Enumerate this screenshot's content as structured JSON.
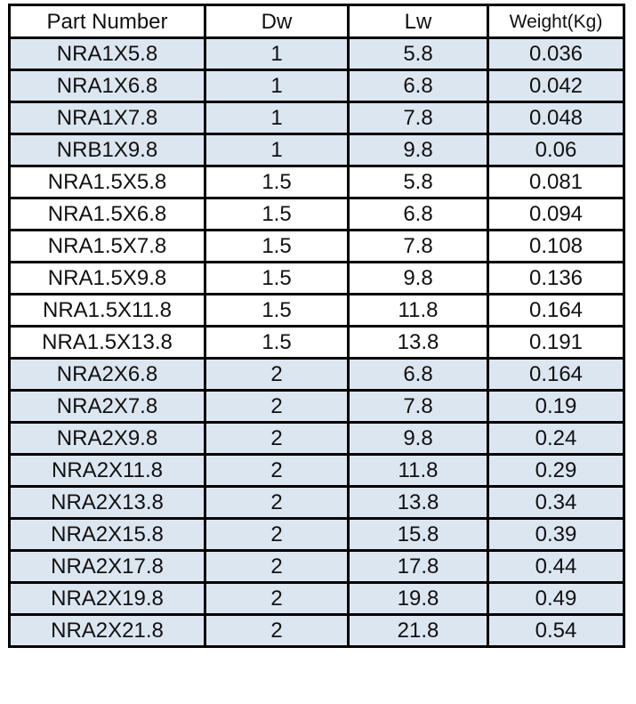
{
  "table": {
    "headers": [
      "Part Number",
      "Dw",
      "Lw",
      "Weight(Kg)"
    ],
    "colors": {
      "shaded_row": "#dce6f1",
      "plain_row": "#ffffff",
      "border": "#000000"
    },
    "rows": [
      {
        "part": "NRA1X5.8",
        "dw": "1",
        "lw": "5.8",
        "weight": "0.036",
        "shaded": true
      },
      {
        "part": "NRA1X6.8",
        "dw": "1",
        "lw": "6.8",
        "weight": "0.042",
        "shaded": true
      },
      {
        "part": "NRA1X7.8",
        "dw": "1",
        "lw": "7.8",
        "weight": "0.048",
        "shaded": true
      },
      {
        "part": "NRB1X9.8",
        "dw": "1",
        "lw": "9.8",
        "weight": "0.06",
        "shaded": true
      },
      {
        "part": "NRA1.5X5.8",
        "dw": "1.5",
        "lw": "5.8",
        "weight": "0.081",
        "shaded": false
      },
      {
        "part": "NRA1.5X6.8",
        "dw": "1.5",
        "lw": "6.8",
        "weight": "0.094",
        "shaded": false
      },
      {
        "part": "NRA1.5X7.8",
        "dw": "1.5",
        "lw": "7.8",
        "weight": "0.108",
        "shaded": false
      },
      {
        "part": "NRA1.5X9.8",
        "dw": "1.5",
        "lw": "9.8",
        "weight": "0.136",
        "shaded": false
      },
      {
        "part": "NRA1.5X11.8",
        "dw": "1.5",
        "lw": "11.8",
        "weight": "0.164",
        "shaded": false
      },
      {
        "part": "NRA1.5X13.8",
        "dw": "1.5",
        "lw": "13.8",
        "weight": "0.191",
        "shaded": false
      },
      {
        "part": "NRA2X6.8",
        "dw": "2",
        "lw": "6.8",
        "weight": "0.164",
        "shaded": true
      },
      {
        "part": "NRA2X7.8",
        "dw": "2",
        "lw": "7.8",
        "weight": "0.19",
        "shaded": true
      },
      {
        "part": "NRA2X9.8",
        "dw": "2",
        "lw": "9.8",
        "weight": "0.24",
        "shaded": true
      },
      {
        "part": "NRA2X11.8",
        "dw": "2",
        "lw": "11.8",
        "weight": "0.29",
        "shaded": true
      },
      {
        "part": "NRA2X13.8",
        "dw": "2",
        "lw": "13.8",
        "weight": "0.34",
        "shaded": true
      },
      {
        "part": "NRA2X15.8",
        "dw": "2",
        "lw": "15.8",
        "weight": "0.39",
        "shaded": true
      },
      {
        "part": "NRA2X17.8",
        "dw": "2",
        "lw": "17.8",
        "weight": "0.44",
        "shaded": true
      },
      {
        "part": "NRA2X19.8",
        "dw": "2",
        "lw": "19.8",
        "weight": "0.49",
        "shaded": true
      },
      {
        "part": "NRA2X21.8",
        "dw": "2",
        "lw": "21.8",
        "weight": "0.54",
        "shaded": true
      }
    ]
  }
}
